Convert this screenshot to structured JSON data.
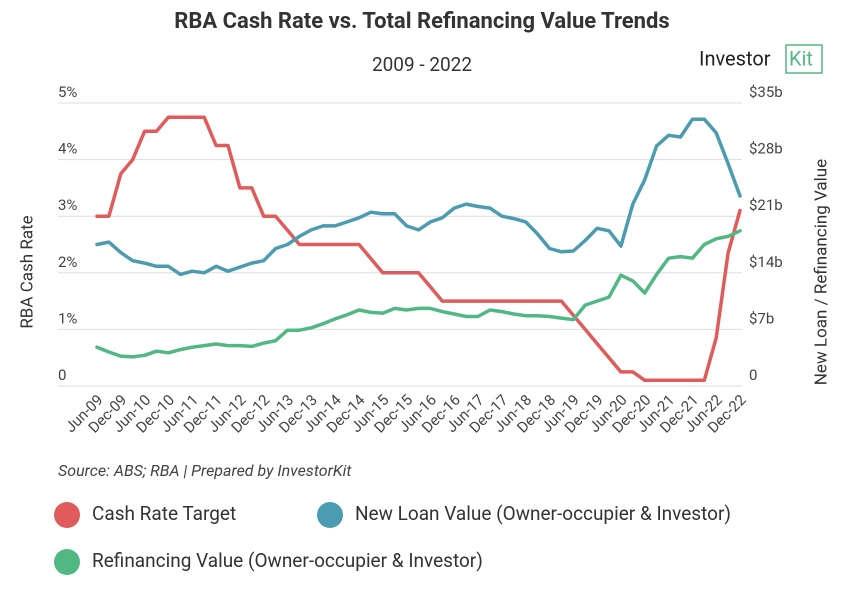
{
  "chart_data": {
    "type": "line",
    "title": "RBA Cash Rate vs. Total Refinancing Value Trends",
    "subtitle": "2009 - 2022",
    "logo_text": "Investor",
    "logo_accent": "Kit",
    "source": "Source: ABS; RBA | Prepared by InvestorKit",
    "y_label": "RBA Cash Rate",
    "y2_label": "New Loan / Refinancing Value",
    "categories": [
      "Jun-09",
      null,
      "Dec-09",
      null,
      "Jun-10",
      null,
      "Dec-10",
      null,
      "Jun-11",
      null,
      "Dec-11",
      null,
      "Jun-12",
      null,
      "Dec-12",
      null,
      "Jun-13",
      null,
      "Dec-13",
      null,
      "Jun-14",
      null,
      "Dec-14",
      null,
      "Jun-15",
      null,
      "Dec-15",
      null,
      "Jun-16",
      null,
      "Dec-16",
      null,
      "Jun-17",
      null,
      "Dec-17",
      null,
      "Jun-18",
      null,
      "Dec-18",
      null,
      "Jun-19",
      null,
      "Dec-19",
      null,
      "Jun-20",
      null,
      "Dec-20",
      null,
      "Jun-21",
      null,
      "Dec-21",
      null,
      "Jun-22",
      null,
      "Dec-22"
    ],
    "ylim": [
      0,
      5
    ],
    "yticks": [
      0,
      {
        "value": 1,
        "label": "1%"
      },
      {
        "value": 2,
        "label": "2%"
      },
      {
        "value": 3,
        "label": "3%"
      },
      {
        "value": 4,
        "label": "4%"
      },
      {
        "value": 5,
        "label": "5%"
      }
    ],
    "y2lim": [
      0,
      35
    ],
    "y2ticks": [
      0,
      {
        "value": 7,
        "label": "$7b"
      },
      {
        "value": 14,
        "label": "$14b"
      },
      {
        "value": 21,
        "label": "$21b"
      },
      {
        "value": 28,
        "label": "$28b"
      },
      {
        "value": 35,
        "label": "$35b"
      }
    ],
    "grid": true,
    "legend": "bottom",
    "series": [
      {
        "name": "Cash Rate Target",
        "color": "#e05b5b",
        "axis": "y",
        "values": [
          3.0,
          3.0,
          3.75,
          4.0,
          4.5,
          4.5,
          4.75,
          4.75,
          4.75,
          4.75,
          4.25,
          4.25,
          3.5,
          3.5,
          3.0,
          3.0,
          2.75,
          2.5,
          2.5,
          2.5,
          2.5,
          2.5,
          2.5,
          2.25,
          2.0,
          2.0,
          2.0,
          2.0,
          1.75,
          1.5,
          1.5,
          1.5,
          1.5,
          1.5,
          1.5,
          1.5,
          1.5,
          1.5,
          1.5,
          1.5,
          1.25,
          1.0,
          0.75,
          0.5,
          0.25,
          0.25,
          0.1,
          0.1,
          0.1,
          0.1,
          0.1,
          0.1,
          0.85,
          2.35,
          3.1
        ]
      },
      {
        "name": "New Loan Value (Owner-occupier & Investor)",
        "color": "#4b9bb1",
        "axis": "y2",
        "values": [
          17.5,
          17.8,
          16.5,
          15.5,
          15.2,
          14.8,
          14.8,
          13.8,
          14.2,
          14.0,
          14.8,
          14.2,
          14.7,
          15.2,
          15.5,
          17.0,
          17.5,
          18.5,
          19.3,
          19.8,
          19.8,
          20.3,
          20.8,
          21.5,
          21.3,
          21.3,
          19.8,
          19.3,
          20.3,
          20.8,
          22.0,
          22.5,
          22.2,
          22.0,
          21.0,
          20.7,
          20.3,
          18.8,
          17.0,
          16.6,
          16.7,
          18.0,
          19.5,
          19.2,
          17.3,
          22.5,
          25.5,
          29.7,
          31.0,
          30.8,
          33.0,
          33.0,
          31.3,
          27.5,
          23.5
        ]
      },
      {
        "name": "Refinancing Value (Owner-occupier & Investor)",
        "color": "#52b883",
        "axis": "y2",
        "values": [
          4.8,
          4.2,
          3.7,
          3.6,
          3.8,
          4.3,
          4.1,
          4.5,
          4.8,
          5.0,
          5.2,
          5.0,
          5.0,
          4.9,
          5.3,
          5.6,
          6.9,
          6.9,
          7.2,
          7.7,
          8.3,
          8.8,
          9.4,
          9.1,
          9.0,
          9.6,
          9.4,
          9.6,
          9.6,
          9.2,
          8.9,
          8.6,
          8.6,
          9.4,
          9.2,
          8.9,
          8.7,
          8.7,
          8.6,
          8.4,
          8.2,
          10.0,
          10.5,
          11.0,
          13.7,
          13.0,
          11.5,
          13.8,
          15.8,
          16.0,
          15.8,
          17.5,
          18.2,
          18.5,
          19.2
        ]
      }
    ]
  }
}
